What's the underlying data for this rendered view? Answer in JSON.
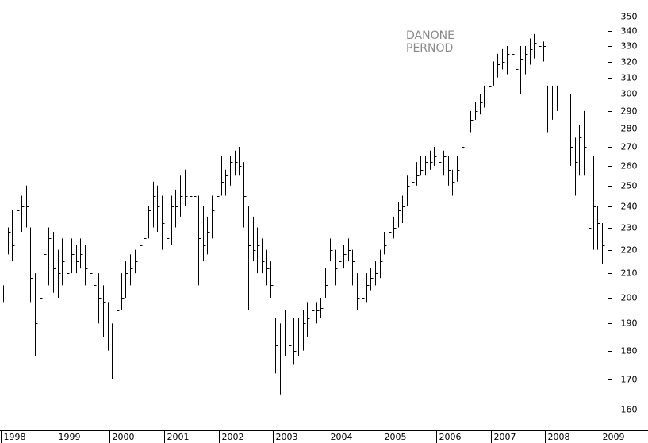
{
  "chart_data": {
    "type": "hlc",
    "annotations": [
      "DANONE",
      "PERNOD"
    ],
    "log_scale": true,
    "color": "#000000",
    "ylim": [
      153.6,
      361.7
    ],
    "yticks": [
      160,
      170,
      180,
      190,
      200,
      210,
      220,
      230,
      240,
      250,
      260,
      270,
      280,
      290,
      300,
      310,
      320,
      330,
      340,
      350
    ],
    "categories": [
      "1998",
      null,
      null,
      null,
      null,
      null,
      null,
      null,
      null,
      null,
      null,
      null,
      "1999",
      null,
      null,
      null,
      null,
      null,
      null,
      null,
      null,
      null,
      null,
      null,
      "2000",
      null,
      null,
      null,
      null,
      null,
      null,
      null,
      null,
      null,
      null,
      null,
      "2001",
      null,
      null,
      null,
      null,
      null,
      null,
      null,
      null,
      null,
      null,
      null,
      "2002",
      null,
      null,
      null,
      null,
      null,
      null,
      null,
      null,
      null,
      null,
      null,
      "2003",
      null,
      null,
      null,
      null,
      null,
      null,
      null,
      null,
      null,
      null,
      null,
      "2004",
      null,
      null,
      null,
      null,
      null,
      null,
      null,
      null,
      null,
      null,
      null,
      "2005",
      null,
      null,
      null,
      null,
      null,
      null,
      null,
      null,
      null,
      null,
      null,
      "2006",
      null,
      null,
      null,
      null,
      null,
      null,
      null,
      null,
      null,
      null,
      null,
      "2007",
      null,
      null,
      null,
      null,
      null,
      null,
      null,
      null,
      null,
      null,
      null,
      "2008",
      null,
      null,
      null,
      null,
      null,
      null,
      null,
      null,
      null,
      null,
      null,
      "2009"
    ],
    "high": [
      205,
      230,
      238,
      242,
      245,
      250,
      230,
      210,
      205,
      225,
      230,
      228,
      220,
      225,
      222,
      225,
      222,
      225,
      222,
      218,
      215,
      210,
      205,
      198,
      190,
      198,
      210,
      215,
      218,
      220,
      225,
      230,
      240,
      252,
      250,
      245,
      240,
      245,
      248,
      255,
      258,
      260,
      255,
      245,
      240,
      235,
      245,
      250,
      265,
      258,
      265,
      268,
      270,
      262,
      240,
      235,
      230,
      225,
      220,
      215,
      192,
      190,
      195,
      190,
      192,
      192,
      195,
      198,
      200,
      198,
      200,
      212,
      225,
      220,
      222,
      222,
      225,
      220,
      210,
      205,
      210,
      212,
      215,
      220,
      228,
      232,
      235,
      242,
      245,
      255,
      258,
      262,
      265,
      265,
      268,
      270,
      270,
      268,
      265,
      258,
      265,
      275,
      285,
      290,
      295,
      300,
      305,
      312,
      320,
      325,
      328,
      330,
      330,
      328,
      330,
      330,
      335,
      338,
      335,
      333,
      305,
      305,
      305,
      310,
      305,
      300,
      275,
      282,
      290,
      275,
      265,
      240,
      232
    ],
    "low": [
      198,
      218,
      215,
      225,
      228,
      230,
      198,
      178,
      172,
      200,
      205,
      202,
      200,
      205,
      205,
      210,
      210,
      212,
      205,
      205,
      195,
      190,
      185,
      180,
      170,
      166,
      195,
      200,
      205,
      210,
      215,
      220,
      225,
      230,
      228,
      220,
      215,
      222,
      230,
      235,
      240,
      235,
      240,
      205,
      215,
      218,
      225,
      235,
      245,
      245,
      250,
      255,
      255,
      230,
      195,
      215,
      210,
      210,
      205,
      200,
      172,
      165,
      178,
      175,
      175,
      178,
      180,
      185,
      188,
      190,
      192,
      200,
      215,
      205,
      210,
      212,
      215,
      205,
      195,
      193,
      198,
      203,
      205,
      208,
      218,
      220,
      225,
      230,
      232,
      240,
      245,
      250,
      255,
      255,
      258,
      260,
      258,
      255,
      250,
      245,
      252,
      258,
      268,
      278,
      285,
      288,
      292,
      298,
      305,
      310,
      315,
      312,
      318,
      305,
      300,
      312,
      318,
      322,
      325,
      320,
      278,
      285,
      290,
      295,
      285,
      260,
      245,
      255,
      255,
      220,
      220,
      220,
      214
    ],
    "close": [
      203,
      228,
      222,
      238,
      240,
      240,
      208,
      190,
      200,
      218,
      225,
      212,
      210,
      215,
      210,
      218,
      215,
      218,
      212,
      210,
      205,
      200,
      198,
      185,
      185,
      195,
      200,
      210,
      212,
      215,
      222,
      225,
      238,
      245,
      240,
      232,
      225,
      240,
      240,
      245,
      245,
      245,
      245,
      225,
      222,
      228,
      238,
      245,
      252,
      255,
      262,
      262,
      260,
      245,
      222,
      220,
      222,
      215,
      212,
      205,
      182,
      185,
      185,
      182,
      180,
      188,
      190,
      192,
      195,
      195,
      196,
      205,
      220,
      212,
      215,
      218,
      220,
      215,
      200,
      200,
      205,
      208,
      210,
      215,
      222,
      228,
      230,
      238,
      240,
      250,
      252,
      255,
      258,
      262,
      262,
      265,
      262,
      265,
      258,
      252,
      258,
      270,
      280,
      285,
      290,
      295,
      300,
      305,
      312,
      318,
      320,
      325,
      325,
      315,
      322,
      325,
      328,
      332,
      330,
      330,
      298,
      300,
      298,
      302,
      300,
      270,
      262,
      275,
      270,
      230,
      240,
      232,
      222
    ]
  }
}
